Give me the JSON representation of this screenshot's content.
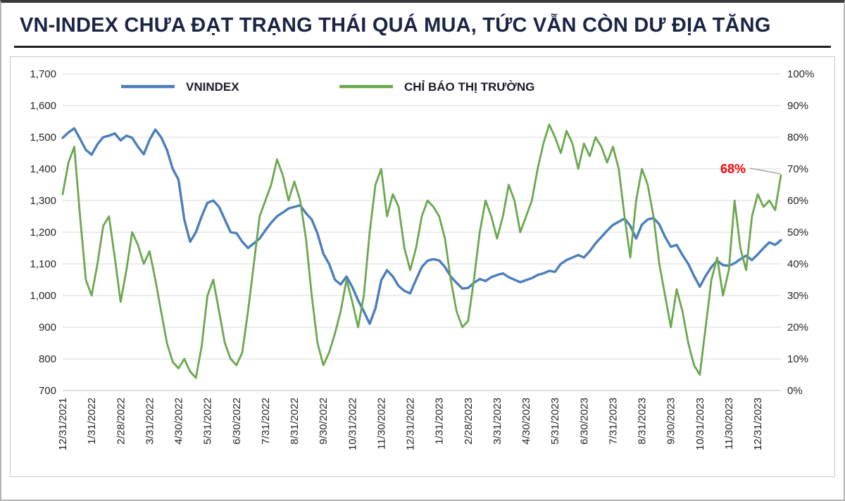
{
  "page": {
    "title": "VN-INDEX CHƯA ĐẠT TRẠNG THÁI QUÁ MUA, TỨC VẪN CÒN DƯ ĐỊA TĂNG"
  },
  "chart_data": {
    "type": "line",
    "title": "VN-INDEX CHƯA ĐẠT TRẠNG THÁI QUÁ MUA, TỨC VẪN CÒN DƯ ĐỊA TĂNG",
    "legend_position": "top",
    "grid": "horizontal",
    "points_per_month": 5,
    "x_tick_labels": [
      "12/31/2021",
      "1/31/2022",
      "2/28/2022",
      "3/31/2022",
      "4/30/2022",
      "5/31/2022",
      "6/30/2022",
      "7/31/2022",
      "8/31/2022",
      "9/30/2022",
      "10/31/2022",
      "11/30/2022",
      "12/31/2022",
      "1/31/2023",
      "2/28/2023",
      "3/31/2023",
      "4/30/2023",
      "5/31/2023",
      "6/30/2023",
      "7/31/2023",
      "8/31/2023",
      "9/30/2023",
      "10/31/2023",
      "11/30/2023",
      "12/31/2023"
    ],
    "left_axis": {
      "min": 700,
      "max": 1700,
      "step": 100,
      "tick_labels": [
        "700",
        "800",
        "900",
        "1,000",
        "1,100",
        "1,200",
        "1,300",
        "1,400",
        "1,500",
        "1,600",
        "1,700"
      ]
    },
    "right_axis": {
      "min": 0,
      "max": 100,
      "step": 10,
      "tick_labels": [
        "0%",
        "10%",
        "20%",
        "30%",
        "40%",
        "50%",
        "60%",
        "70%",
        "80%",
        "90%",
        "100%"
      ]
    },
    "series": [
      {
        "name": "VNINDEX",
        "id": "vnindex-line",
        "color": "#4a7ebb",
        "axis": "left",
        "values": [
          1498,
          1515,
          1528,
          1495,
          1460,
          1445,
          1478,
          1500,
          1505,
          1512,
          1490,
          1505,
          1498,
          1470,
          1446,
          1492,
          1524,
          1500,
          1460,
          1400,
          1366,
          1240,
          1170,
          1200,
          1250,
          1293,
          1300,
          1280,
          1240,
          1200,
          1197,
          1170,
          1150,
          1165,
          1180,
          1206,
          1230,
          1250,
          1262,
          1275,
          1280,
          1285,
          1260,
          1240,
          1196,
          1132,
          1100,
          1050,
          1035,
          1060,
          1027,
          985,
          950,
          911,
          960,
          1048,
          1080,
          1060,
          1030,
          1015,
          1007,
          1050,
          1090,
          1110,
          1115,
          1111,
          1090,
          1060,
          1040,
          1022,
          1024,
          1040,
          1052,
          1046,
          1058,
          1065,
          1070,
          1058,
          1050,
          1042,
          1049,
          1055,
          1065,
          1070,
          1078,
          1075,
          1100,
          1112,
          1120,
          1128,
          1120,
          1140,
          1165,
          1185,
          1205,
          1223,
          1233,
          1243,
          1220,
          1180,
          1224,
          1240,
          1245,
          1225,
          1185,
          1154,
          1160,
          1128,
          1100,
          1062,
          1028,
          1062,
          1090,
          1110,
          1096,
          1094,
          1102,
          1115,
          1126,
          1112,
          1130,
          1150,
          1168,
          1160,
          1175
        ]
      },
      {
        "name": "CHỈ BÁO THỊ TRƯỜNG",
        "id": "market-indicator-line",
        "color": "#6aa84f",
        "axis": "right",
        "values": [
          62,
          72,
          77,
          55,
          35,
          30,
          40,
          52,
          55,
          42,
          28,
          38,
          50,
          46,
          40,
          44,
          35,
          25,
          15,
          9,
          7,
          10,
          6,
          4,
          14,
          30,
          35,
          25,
          15,
          10,
          8,
          12,
          25,
          40,
          55,
          60,
          65,
          73,
          68,
          60,
          66,
          60,
          48,
          30,
          15,
          8,
          12,
          18,
          25,
          35,
          28,
          20,
          30,
          50,
          65,
          70,
          55,
          62,
          58,
          45,
          38,
          45,
          55,
          60,
          58,
          55,
          48,
          35,
          25,
          20,
          22,
          35,
          50,
          60,
          55,
          48,
          55,
          65,
          60,
          50,
          55,
          60,
          70,
          78,
          84,
          80,
          75,
          82,
          78,
          70,
          78,
          74,
          80,
          77,
          72,
          77,
          70,
          55,
          42,
          60,
          70,
          65,
          55,
          40,
          30,
          20,
          32,
          25,
          15,
          8,
          5,
          20,
          35,
          42,
          30,
          38,
          60,
          45,
          38,
          55,
          62,
          58,
          60,
          57,
          68
        ]
      }
    ],
    "annotation": {
      "text": "68%",
      "color": "#ff0000"
    }
  }
}
